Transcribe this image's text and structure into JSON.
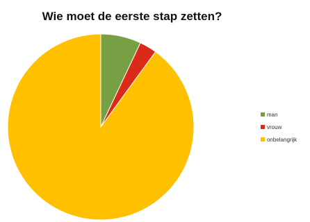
{
  "chart_data": {
    "type": "pie",
    "title": "Wie moet de eerste stap zetten?",
    "categories": [
      "man",
      "vrouw",
      "onbelangrijk"
    ],
    "values": [
      7,
      3,
      90
    ],
    "colors": [
      "#77a044",
      "#d92a1a",
      "#ffc000"
    ],
    "legend_position": "right"
  }
}
